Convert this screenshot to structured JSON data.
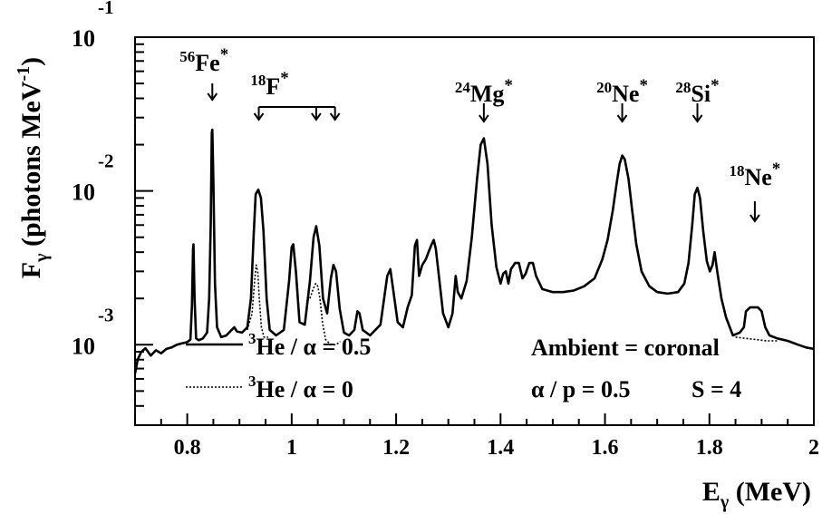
{
  "chart_data": {
    "type": "line",
    "xlabel": "E",
    "xlabel_sub": "γ",
    "xlabel_unit": "(MeV)",
    "ylabel": "F",
    "ylabel_sub": "γ",
    "ylabel_unit_open": "(photons MeV",
    "ylabel_unit_exp": "-1",
    "ylabel_unit_close": ")",
    "xlim": [
      0.7,
      2.0
    ],
    "ylim": [
      0.0003,
      0.1
    ],
    "y_scale": "log",
    "grid": false,
    "x_ticks": [
      {
        "value": 0.8,
        "label": "0.8"
      },
      {
        "value": 1.0,
        "label": "1"
      },
      {
        "value": 1.2,
        "label": "1.2"
      },
      {
        "value": 1.4,
        "label": "1.4"
      },
      {
        "value": 1.6,
        "label": "1.6"
      },
      {
        "value": 1.8,
        "label": "1.8"
      },
      {
        "value": 2.0,
        "label": "2"
      }
    ],
    "y_ticks": [
      {
        "value": 0.001,
        "base": "10",
        "exp": "-3"
      },
      {
        "value": 0.01,
        "base": "10",
        "exp": "-2"
      },
      {
        "value": 0.1,
        "base": "10",
        "exp": "-1"
      }
    ],
    "series": [
      {
        "name": "³He / α = 0.5",
        "style": "solid",
        "points": [
          [
            0.7,
            0.00065
          ],
          [
            0.705,
            0.0008
          ],
          [
            0.712,
            0.0009
          ],
          [
            0.72,
            0.00095
          ],
          [
            0.73,
            0.00085
          ],
          [
            0.74,
            0.00092
          ],
          [
            0.75,
            0.00088
          ],
          [
            0.76,
            0.00094
          ],
          [
            0.77,
            0.00096
          ],
          [
            0.78,
            0.001
          ],
          [
            0.79,
            0.00102
          ],
          [
            0.8,
            0.00104
          ],
          [
            0.806,
            0.00108
          ],
          [
            0.809,
            0.0018
          ],
          [
            0.811,
            0.0042
          ],
          [
            0.812,
            0.0045
          ],
          [
            0.814,
            0.002
          ],
          [
            0.817,
            0.0011
          ],
          [
            0.822,
            0.00107
          ],
          [
            0.83,
            0.0011
          ],
          [
            0.838,
            0.0012
          ],
          [
            0.842,
            0.002
          ],
          [
            0.845,
            0.006
          ],
          [
            0.847,
            0.024
          ],
          [
            0.848,
            0.025
          ],
          [
            0.85,
            0.012
          ],
          [
            0.853,
            0.0025
          ],
          [
            0.857,
            0.0013
          ],
          [
            0.865,
            0.00112
          ],
          [
            0.875,
            0.00115
          ],
          [
            0.885,
            0.00125
          ],
          [
            0.89,
            0.0013
          ],
          [
            0.895,
            0.00122
          ],
          [
            0.905,
            0.0012
          ],
          [
            0.915,
            0.0013
          ],
          [
            0.922,
            0.002
          ],
          [
            0.927,
            0.005
          ],
          [
            0.931,
            0.0095
          ],
          [
            0.936,
            0.0102
          ],
          [
            0.941,
            0.009
          ],
          [
            0.946,
            0.0055
          ],
          [
            0.952,
            0.002
          ],
          [
            0.958,
            0.00125
          ],
          [
            0.97,
            0.00115
          ],
          [
            0.985,
            0.00125
          ],
          [
            0.995,
            0.0026
          ],
          [
            1.0,
            0.0043
          ],
          [
            1.003,
            0.0045
          ],
          [
            1.008,
            0.003
          ],
          [
            1.015,
            0.0014
          ],
          [
            1.025,
            0.00135
          ],
          [
            1.035,
            0.0026
          ],
          [
            1.042,
            0.005
          ],
          [
            1.047,
            0.0059
          ],
          [
            1.053,
            0.0044
          ],
          [
            1.06,
            0.002
          ],
          [
            1.068,
            0.0016
          ],
          [
            1.075,
            0.0027
          ],
          [
            1.08,
            0.0033
          ],
          [
            1.085,
            0.003
          ],
          [
            1.092,
            0.0017
          ],
          [
            1.1,
            0.0012
          ],
          [
            1.11,
            0.00115
          ],
          [
            1.12,
            0.00125
          ],
          [
            1.126,
            0.00165
          ],
          [
            1.13,
            0.0016
          ],
          [
            1.136,
            0.00125
          ],
          [
            1.15,
            0.00115
          ],
          [
            1.17,
            0.00135
          ],
          [
            1.183,
            0.0028
          ],
          [
            1.189,
            0.0031
          ],
          [
            1.195,
            0.0022
          ],
          [
            1.203,
            0.0014
          ],
          [
            1.213,
            0.0013
          ],
          [
            1.222,
            0.00175
          ],
          [
            1.23,
            0.0021
          ],
          [
            1.236,
            0.0044
          ],
          [
            1.24,
            0.0048
          ],
          [
            1.244,
            0.0028
          ],
          [
            1.25,
            0.0033
          ],
          [
            1.257,
            0.0036
          ],
          [
            1.262,
            0.004
          ],
          [
            1.268,
            0.0045
          ],
          [
            1.272,
            0.0048
          ],
          [
            1.276,
            0.0042
          ],
          [
            1.283,
            0.0026
          ],
          [
            1.29,
            0.0016
          ],
          [
            1.3,
            0.0013
          ],
          [
            1.308,
            0.0016
          ],
          [
            1.314,
            0.0028
          ],
          [
            1.318,
            0.0022
          ],
          [
            1.325,
            0.002
          ],
          [
            1.335,
            0.0026
          ],
          [
            1.345,
            0.005
          ],
          [
            1.355,
            0.012
          ],
          [
            1.362,
            0.02
          ],
          [
            1.368,
            0.022
          ],
          [
            1.375,
            0.015
          ],
          [
            1.383,
            0.006
          ],
          [
            1.392,
            0.0032
          ],
          [
            1.4,
            0.0025
          ],
          [
            1.405,
            0.0029
          ],
          [
            1.41,
            0.003
          ],
          [
            1.415,
            0.0025
          ],
          [
            1.42,
            0.0031
          ],
          [
            1.428,
            0.0034
          ],
          [
            1.435,
            0.0034
          ],
          [
            1.442,
            0.0027
          ],
          [
            1.448,
            0.0029
          ],
          [
            1.455,
            0.0034
          ],
          [
            1.462,
            0.0034
          ],
          [
            1.468,
            0.0028
          ],
          [
            1.48,
            0.0023
          ],
          [
            1.5,
            0.0022
          ],
          [
            1.52,
            0.0022
          ],
          [
            1.54,
            0.00225
          ],
          [
            1.56,
            0.0024
          ],
          [
            1.58,
            0.0027
          ],
          [
            1.595,
            0.0036
          ],
          [
            1.605,
            0.0048
          ],
          [
            1.615,
            0.0075
          ],
          [
            1.622,
            0.011
          ],
          [
            1.628,
            0.015
          ],
          [
            1.633,
            0.017
          ],
          [
            1.638,
            0.016
          ],
          [
            1.645,
            0.012
          ],
          [
            1.652,
            0.0075
          ],
          [
            1.66,
            0.0045
          ],
          [
            1.67,
            0.003
          ],
          [
            1.685,
            0.0024
          ],
          [
            1.7,
            0.0022
          ],
          [
            1.72,
            0.00215
          ],
          [
            1.74,
            0.0022
          ],
          [
            1.752,
            0.0025
          ],
          [
            1.76,
            0.0034
          ],
          [
            1.767,
            0.006
          ],
          [
            1.772,
            0.0095
          ],
          [
            1.777,
            0.0105
          ],
          [
            1.782,
            0.009
          ],
          [
            1.788,
            0.0055
          ],
          [
            1.795,
            0.0035
          ],
          [
            1.801,
            0.003
          ],
          [
            1.806,
            0.0033
          ],
          [
            1.81,
            0.004
          ],
          [
            1.815,
            0.003
          ],
          [
            1.823,
            0.002
          ],
          [
            1.832,
            0.0015
          ],
          [
            1.845,
            0.00115
          ],
          [
            1.858,
            0.0012
          ],
          [
            1.866,
            0.0013
          ],
          [
            1.87,
            0.00165
          ],
          [
            1.878,
            0.00175
          ],
          [
            1.885,
            0.00175
          ],
          [
            1.893,
            0.00175
          ],
          [
            1.9,
            0.00165
          ],
          [
            1.907,
            0.0013
          ],
          [
            1.915,
            0.00115
          ],
          [
            1.93,
            0.0011
          ],
          [
            1.95,
            0.00106
          ],
          [
            1.97,
            0.001
          ],
          [
            1.985,
            0.00096
          ],
          [
            2.0,
            0.00094
          ]
        ]
      },
      {
        "name": "³He / α = 0",
        "style": "dotted",
        "segments": [
          [
            [
              0.915,
              0.00125
            ],
            [
              0.924,
              0.0016
            ],
            [
              0.929,
              0.0026
            ],
            [
              0.932,
              0.0033
            ],
            [
              0.935,
              0.003
            ],
            [
              0.938,
              0.002
            ],
            [
              0.942,
              0.0013
            ],
            [
              0.947,
              0.00112
            ],
            [
              0.955,
              0.00112
            ]
          ],
          [
            [
              1.035,
              0.002
            ],
            [
              1.041,
              0.0023
            ],
            [
              1.046,
              0.0025
            ],
            [
              1.05,
              0.0024
            ],
            [
              1.054,
              0.002
            ],
            [
              1.059,
              0.0014
            ],
            [
              1.065,
              0.00108
            ],
            [
              1.075,
              0.001
            ],
            [
              1.085,
              0.001
            ],
            [
              1.093,
              0.00105
            ]
          ],
          [
            [
              1.85,
              0.00112
            ],
            [
              1.87,
              0.0011
            ],
            [
              1.89,
              0.00108
            ],
            [
              1.91,
              0.00106
            ],
            [
              1.93,
              0.00106
            ]
          ]
        ]
      }
    ],
    "annotations": [
      {
        "iso": "56",
        "elem": "Fe",
        "mark": "*",
        "x": 0.848
      },
      {
        "iso": "18",
        "elem": "F",
        "mark": "*",
        "x": [
          0.937,
          1.047,
          1.083
        ]
      },
      {
        "iso": "24",
        "elem": "Mg",
        "mark": "*",
        "x": 1.368
      },
      {
        "iso": "20",
        "elem": "Ne",
        "mark": "*",
        "x": 1.633
      },
      {
        "iso": "28",
        "elem": "Si",
        "mark": "*",
        "x": 1.777
      },
      {
        "iso": "18",
        "elem": "Ne",
        "mark": "*",
        "x": 1.887
      }
    ],
    "legend": {
      "placement": "bottom-left",
      "entries": [
        {
          "sup": "3",
          "text": "He / α = 0.5",
          "style": "solid"
        },
        {
          "sup": "3",
          "text": "He / α = 0",
          "style": "dotted"
        }
      ]
    },
    "notes": [
      {
        "text": "Ambient = coronal"
      },
      {
        "text": "α / p = 0.5"
      },
      {
        "text": "S = 4"
      }
    ]
  }
}
